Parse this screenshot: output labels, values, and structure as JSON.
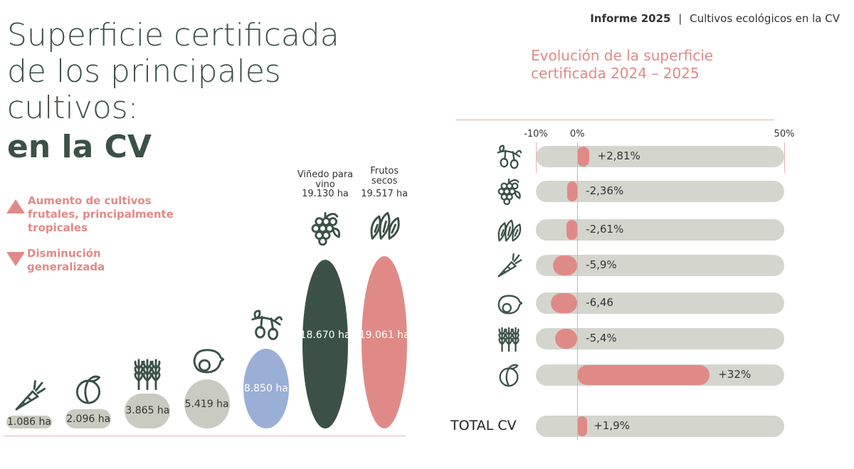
{
  "header": {
    "report": "Informe 2025",
    "separator": "|",
    "subject": "Cultivos ecológicos en la CV",
    "title_lines": [
      "Superficie certificada",
      "de los principales",
      "cultivos:"
    ],
    "title_bold": "en la CV"
  },
  "legend": [
    {
      "symbol": "up",
      "text": "Aumento de cultivos frutales, principalmente tropicales"
    },
    {
      "symbol": "down",
      "text": "Disminución generalizada"
    }
  ],
  "chart_data": [
    {
      "type": "pillbar",
      "categories": [
        null,
        null,
        null,
        null,
        null,
        "Viñedo para vino",
        "Frutos secos"
      ],
      "annotations": [
        null,
        null,
        null,
        null,
        null,
        "19.130 ha",
        "19.517 ha"
      ],
      "values": [
        1086,
        2096,
        3865,
        5419,
        8850,
        18670,
        19061
      ],
      "value_labels": [
        "1.086 ha",
        "2.096 ha",
        "3.865 ha",
        "5.419 ha",
        "8.850 ha",
        "18.670 ha",
        "19.061 ha"
      ],
      "colors": [
        "#c9cbc0",
        "#c9cbc0",
        "#c9cbc0",
        "#c9cbc0",
        "#9aaed6",
        "#3b5147",
        "#e08a87"
      ]
    },
    {
      "type": "hbar",
      "title": "Evolución de la superficie certificada 2024 – 2025",
      "categories": [
        null,
        null,
        null,
        null,
        null,
        null,
        null,
        "TOTAL CV"
      ],
      "values": [
        2.81,
        -2.36,
        -2.61,
        -5.9,
        -6.46,
        -5.4,
        32,
        1.9
      ],
      "value_labels": [
        "+2,81%",
        "-2,36%",
        "-2,61%",
        "-5,9%",
        "-6,46",
        "-5,4%",
        "+32%",
        "+1,9%"
      ],
      "color": "#e08a87",
      "track_color": "#d4d6cd",
      "xlim": [
        -10,
        50
      ],
      "xticks": [
        {
          "value": -10,
          "label": "-10%"
        },
        {
          "value": 0,
          "label": "0%"
        },
        {
          "value": 50,
          "label": "50%"
        }
      ]
    }
  ]
}
